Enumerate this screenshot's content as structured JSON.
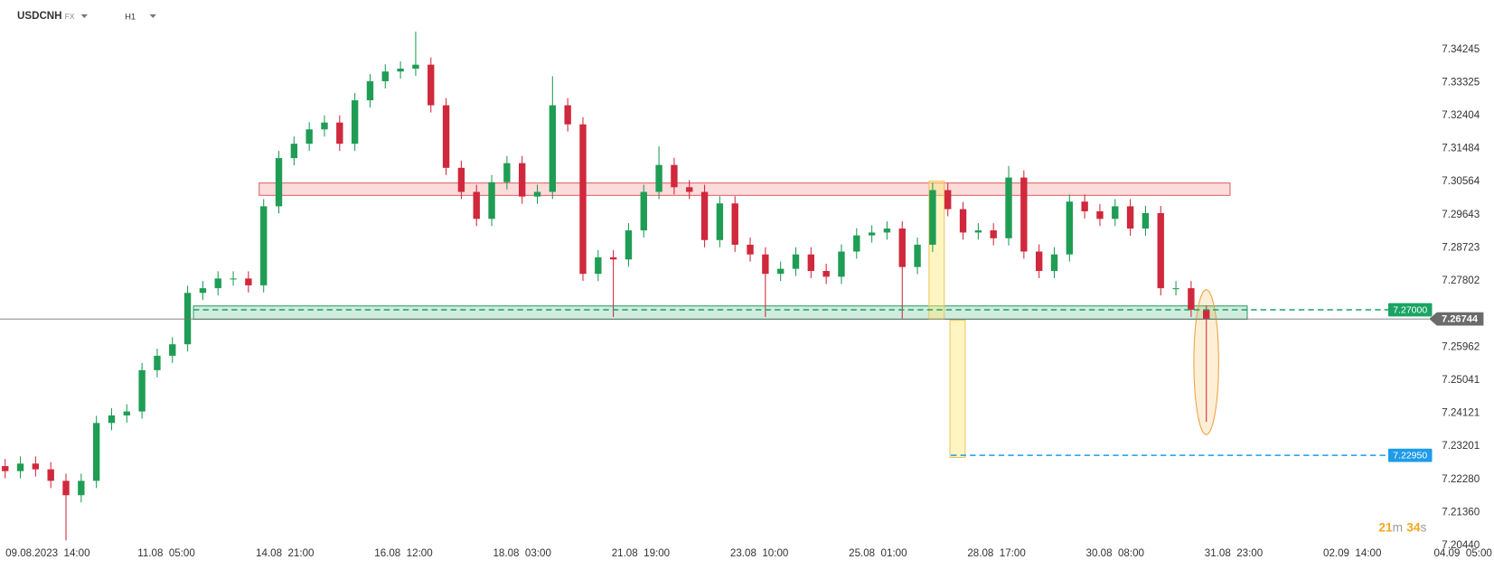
{
  "header": {
    "symbol": "USDCNH",
    "market": "FX",
    "interval": "H1"
  },
  "countdown": [
    "21",
    "m",
    "34",
    "s"
  ],
  "chart_data": {
    "type": "candlestick",
    "up_color": "#1f9d55",
    "down_color": "#d0283c",
    "xlim": [
      -15.7,
      475.6
    ],
    "ylim": [
      7.2037,
      7.3562
    ],
    "grid": false,
    "xticks": [
      {
        "value": 0,
        "label": "09.08.2023  14:00"
      },
      {
        "value": 39,
        "label": "11.08  05:00"
      },
      {
        "value": 78,
        "label": "14.08  21:00"
      },
      {
        "value": 117,
        "label": "16.08  12:00"
      },
      {
        "value": 156,
        "label": "18.08  03:00"
      },
      {
        "value": 195,
        "label": "21.08  19:00"
      },
      {
        "value": 234,
        "label": "23.08  10:00"
      },
      {
        "value": 273,
        "label": "25.08  01:00"
      },
      {
        "value": 312,
        "label": "28.08  17:00"
      },
      {
        "value": 351,
        "label": "30.08  08:00"
      },
      {
        "value": 390,
        "label": "31.08  23:00"
      },
      {
        "value": 429,
        "label": "02.09  14:00"
      },
      {
        "value": 468,
        "label": "04.09  05:00"
      }
    ],
    "yticks": [
      7.34245,
      7.33325,
      7.32404,
      7.31484,
      7.30564,
      7.29643,
      7.28723,
      7.27802,
      7.25962,
      7.25041,
      7.24121,
      7.23201,
      {
        "value": 7.2228,
        "label": "7.22280"
      },
      {
        "value": 7.2136,
        "label": "7.21360"
      },
      {
        "value": 7.2044,
        "label": "7.20440"
      }
    ],
    "x": [
      -14,
      -9,
      -4,
      1,
      6,
      11,
      16,
      21,
      26,
      31,
      36,
      41,
      46,
      51,
      56,
      61,
      66,
      71,
      76,
      81,
      86,
      91,
      96,
      101,
      106,
      111,
      116,
      121,
      126,
      131,
      136,
      141,
      146,
      151,
      156,
      161,
      166,
      171,
      176,
      181,
      186,
      191,
      196,
      201,
      206,
      211,
      216,
      221,
      226,
      231,
      236,
      241,
      246,
      251,
      256,
      261,
      266,
      271,
      276,
      281,
      286,
      291,
      296,
      301,
      306,
      311,
      316,
      321,
      326,
      331,
      336,
      341,
      346,
      351,
      356,
      361,
      366,
      371,
      376,
      381
    ],
    "open": [
      7.2265,
      7.2251,
      7.2272,
      7.2256,
      7.2224,
      7.2184,
      7.2224,
      7.2385,
      7.2406,
      7.2417,
      7.2532,
      7.2572,
      7.2604,
      7.2747,
      7.276,
      7.2787,
      7.2787,
      7.2768,
      7.2988,
      7.3122,
      7.3162,
      7.3202,
      7.3221,
      7.3162,
      7.3283,
      7.3336,
      7.3363,
      7.3371,
      7.3382,
      7.3269,
      7.3095,
      7.3028,
      7.2953,
      7.3055,
      7.3108,
      7.3015,
      7.3028,
      7.3269,
      7.3216,
      7.28,
      7.2846,
      7.284,
      7.2921,
      7.3028,
      7.3103,
      7.3041,
      7.3028,
      7.2894,
      7.2996,
      7.2881,
      7.2854,
      7.28,
      7.2814,
      7.2854,
      7.2808,
      7.2792,
      7.2862,
      7.2907,
      7.2915,
      7.2926,
      7.2819,
      7.2881,
      7.3033,
      7.298,
      7.2915,
      7.2921,
      7.2899,
      7.3068,
      7.2862,
      7.2808,
      7.2854,
      7.3001,
      7.2974,
      7.2953,
      7.2988,
      7.2926,
      7.2969,
      7.276,
      7.276,
      7.27
    ],
    "high": [
      7.2285,
      7.2292,
      7.2292,
      7.2276,
      7.2244,
      7.2244,
      7.2405,
      7.2426,
      7.2437,
      7.2552,
      7.2592,
      7.2624,
      7.2767,
      7.278,
      7.2807,
      7.2807,
      7.2807,
      7.3008,
      7.3142,
      7.3182,
      7.3222,
      7.3241,
      7.3241,
      7.3303,
      7.3356,
      7.3383,
      7.3391,
      7.3474,
      7.3402,
      7.3289,
      7.3115,
      7.3048,
      7.3075,
      7.3128,
      7.3128,
      7.3048,
      7.335,
      7.3289,
      7.3236,
      7.2866,
      7.2866,
      7.2941,
      7.3048,
      7.3155,
      7.3123,
      7.3061,
      7.3048,
      7.3016,
      7.3016,
      7.2901,
      7.2874,
      7.2834,
      7.2874,
      7.2874,
      7.2828,
      7.2882,
      7.2927,
      7.2935,
      7.2946,
      7.2946,
      7.2901,
      7.3053,
      7.3053,
      7.3,
      7.2941,
      7.2941,
      7.31,
      7.3088,
      7.2882,
      7.2874,
      7.3021,
      7.3021,
      7.2994,
      7.3008,
      7.3008,
      7.2989,
      7.2989,
      7.278,
      7.278,
      7.2712
    ],
    "low": [
      7.2231,
      7.2231,
      7.2236,
      7.2204,
      7.2058,
      7.2164,
      7.2204,
      7.2365,
      7.2386,
      7.2397,
      7.2512,
      7.2552,
      7.2584,
      7.2727,
      7.274,
      7.2767,
      7.2748,
      7.2748,
      7.2968,
      7.3102,
      7.3142,
      7.3182,
      7.3142,
      7.3142,
      7.3263,
      7.3316,
      7.3343,
      7.3351,
      7.3249,
      7.3075,
      7.3008,
      7.2933,
      7.2933,
      7.3035,
      7.2995,
      7.2995,
      7.3008,
      7.3196,
      7.278,
      7.278,
      7.268,
      7.282,
      7.2901,
      7.3008,
      7.3021,
      7.3008,
      7.2874,
      7.2874,
      7.2861,
      7.2834,
      7.268,
      7.278,
      7.2794,
      7.2788,
      7.2772,
      7.2772,
      7.2842,
      7.2887,
      7.2895,
      7.2675,
      7.2799,
      7.2861,
      7.296,
      7.2895,
      7.2895,
      7.2879,
      7.2879,
      7.2842,
      7.2788,
      7.2788,
      7.2834,
      7.2954,
      7.2933,
      7.2933,
      7.2906,
      7.2906,
      7.274,
      7.274,
      7.268,
      7.2388
    ],
    "close": [
      7.2251,
      7.2272,
      7.2256,
      7.2224,
      7.2184,
      7.2224,
      7.2385,
      7.2406,
      7.2417,
      7.2532,
      7.2572,
      7.2604,
      7.2747,
      7.276,
      7.2787,
      7.2787,
      7.2768,
      7.2988,
      7.3122,
      7.3162,
      7.3202,
      7.3221,
      7.3162,
      7.3283,
      7.3336,
      7.3363,
      7.3371,
      7.3382,
      7.3269,
      7.3095,
      7.3028,
      7.2953,
      7.3055,
      7.3108,
      7.3015,
      7.3028,
      7.3269,
      7.3216,
      7.28,
      7.2846,
      7.284,
      7.2921,
      7.3028,
      7.3103,
      7.3041,
      7.3028,
      7.2894,
      7.2996,
      7.2881,
      7.2854,
      7.28,
      7.2814,
      7.2854,
      7.2808,
      7.2792,
      7.2862,
      7.2907,
      7.2915,
      7.2926,
      7.2819,
      7.2881,
      7.3033,
      7.298,
      7.2915,
      7.2921,
      7.2899,
      7.3068,
      7.2862,
      7.2808,
      7.2854,
      7.3001,
      7.2974,
      7.2953,
      7.2988,
      7.2926,
      7.2969,
      7.276,
      7.276,
      7.27,
      7.2674
    ],
    "levels": [
      {
        "value": 7.27,
        "label": "7.27000",
        "color": "#19a463"
      },
      {
        "value": 7.2295,
        "label": "7.22950",
        "color": "#1e9be9"
      }
    ],
    "last_price": 7.26744
  }
}
